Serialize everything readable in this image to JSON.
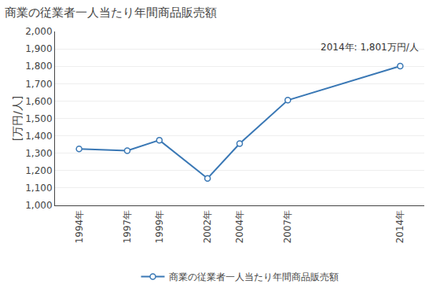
{
  "chart_data": {
    "type": "line",
    "title": "商業の従業者一人当たり年間商品販売額",
    "ylabel": "[万円/人]",
    "annotation": "2014年: 1,801万円/人",
    "x": [
      1994,
      1997,
      1999,
      2002,
      2004,
      2007,
      2014
    ],
    "series": [
      {
        "name": "商業の従業者一人当たり年間商品販売額",
        "color": "#3A78B5",
        "marker": "o",
        "values": [
          1325,
          1315,
          1375,
          1155,
          1355,
          1605,
          1801
        ]
      }
    ],
    "xlim": [
      1992.5,
      2015.5
    ],
    "xticks": [
      {
        "value": 1994,
        "label": "1994年"
      },
      {
        "value": 1997,
        "label": "1997年"
      },
      {
        "value": 1999,
        "label": "1999年"
      },
      {
        "value": 2002,
        "label": "2002年"
      },
      {
        "value": 2004,
        "label": "2004年"
      },
      {
        "value": 2007,
        "label": "2007年"
      },
      {
        "value": 2014,
        "label": "2014年"
      }
    ],
    "ylim": [
      1000,
      2000
    ],
    "yticks": [
      {
        "value": 1000,
        "label": "1,000"
      },
      {
        "value": 1100,
        "label": "1,100"
      },
      {
        "value": 1200,
        "label": "1,200"
      },
      {
        "value": 1300,
        "label": "1,300"
      },
      {
        "value": 1400,
        "label": "1,400"
      },
      {
        "value": 1500,
        "label": "1,500"
      },
      {
        "value": 1600,
        "label": "1,600"
      },
      {
        "value": 1700,
        "label": "1,700"
      },
      {
        "value": 1800,
        "label": "1,800"
      },
      {
        "value": 1900,
        "label": "1,900"
      },
      {
        "value": 2000,
        "label": "2,000"
      }
    ],
    "grid": true,
    "legend": "bottom"
  }
}
